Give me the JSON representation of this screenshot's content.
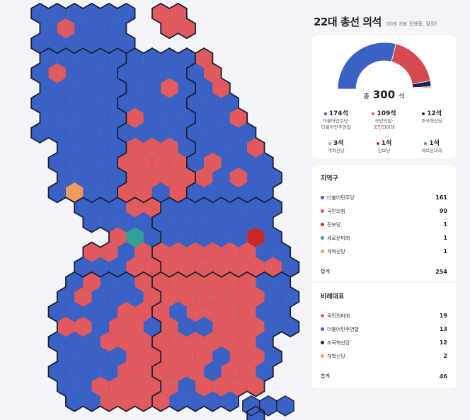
{
  "title": "22대 총선 의석",
  "subtitle": "(비례 개표 진행중, 잠정)",
  "colors": {
    "blue": "#3a62c6",
    "red": "#e05a5e",
    "darkred": "#c8252c",
    "navy": "#17265a",
    "orange": "#f19b5f",
    "teal": "#2ea199",
    "outline": "#1a1f33"
  },
  "summary": {
    "total_label": "총",
    "total_value": "300",
    "total_unit": "석",
    "donut": [
      {
        "party": "더불어민주당·더불어민주연합",
        "seats": 174,
        "color": "#3a62c6"
      },
      {
        "party": "국민의힘·국민의미래",
        "seats": 109,
        "color": "#d54a4f"
      },
      {
        "party": "조국혁신당",
        "seats": 12,
        "color": "#17265a"
      },
      {
        "party": "개혁신당",
        "seats": 3,
        "color": "#f19b5f"
      },
      {
        "party": "진보당",
        "seats": 1,
        "color": "#c8252c"
      },
      {
        "party": "새로운미래",
        "seats": 1,
        "color": "#2ea199"
      }
    ],
    "legend": [
      {
        "seats": "174석",
        "name": "더불어민주당·\n더불어민주연합",
        "color": "#3a62c6"
      },
      {
        "seats": "109석",
        "name": "국민의힘·\n국민의미래",
        "color": "#e05a5e"
      },
      {
        "seats": "12석",
        "name": "조국혁신당",
        "color": "#17265a"
      },
      {
        "seats": "3석",
        "name": "개혁신당",
        "color": "#f19b5f"
      },
      {
        "seats": "1석",
        "name": "진보당",
        "color": "#c8252c"
      },
      {
        "seats": "1석",
        "name": "새로운미래",
        "color": "#2ea199"
      }
    ]
  },
  "district": {
    "title": "지역구",
    "rows": [
      {
        "name": "더불어민주당",
        "value": "161",
        "color": "#3a62c6"
      },
      {
        "name": "국민의힘",
        "value": "90",
        "color": "#e05a5e"
      },
      {
        "name": "진보당",
        "value": "1",
        "color": "#c8252c"
      },
      {
        "name": "새로운미래",
        "value": "1",
        "color": "#2ea199"
      },
      {
        "name": "개혁신당",
        "value": "1",
        "color": "#f19b5f"
      }
    ],
    "total_label": "합계",
    "total_value": "254"
  },
  "proportional": {
    "title": "비례대표",
    "rows": [
      {
        "name": "국민의미래",
        "value": "19",
        "color": "#e05a5e"
      },
      {
        "name": "더불어민주연합",
        "value": "13",
        "color": "#3a62c6"
      },
      {
        "name": "조국혁신당",
        "value": "12",
        "color": "#17265a"
      },
      {
        "name": "개혁신당",
        "value": "2",
        "color": "#f19b5f"
      }
    ],
    "total_label": "합계",
    "total_value": "46"
  }
}
